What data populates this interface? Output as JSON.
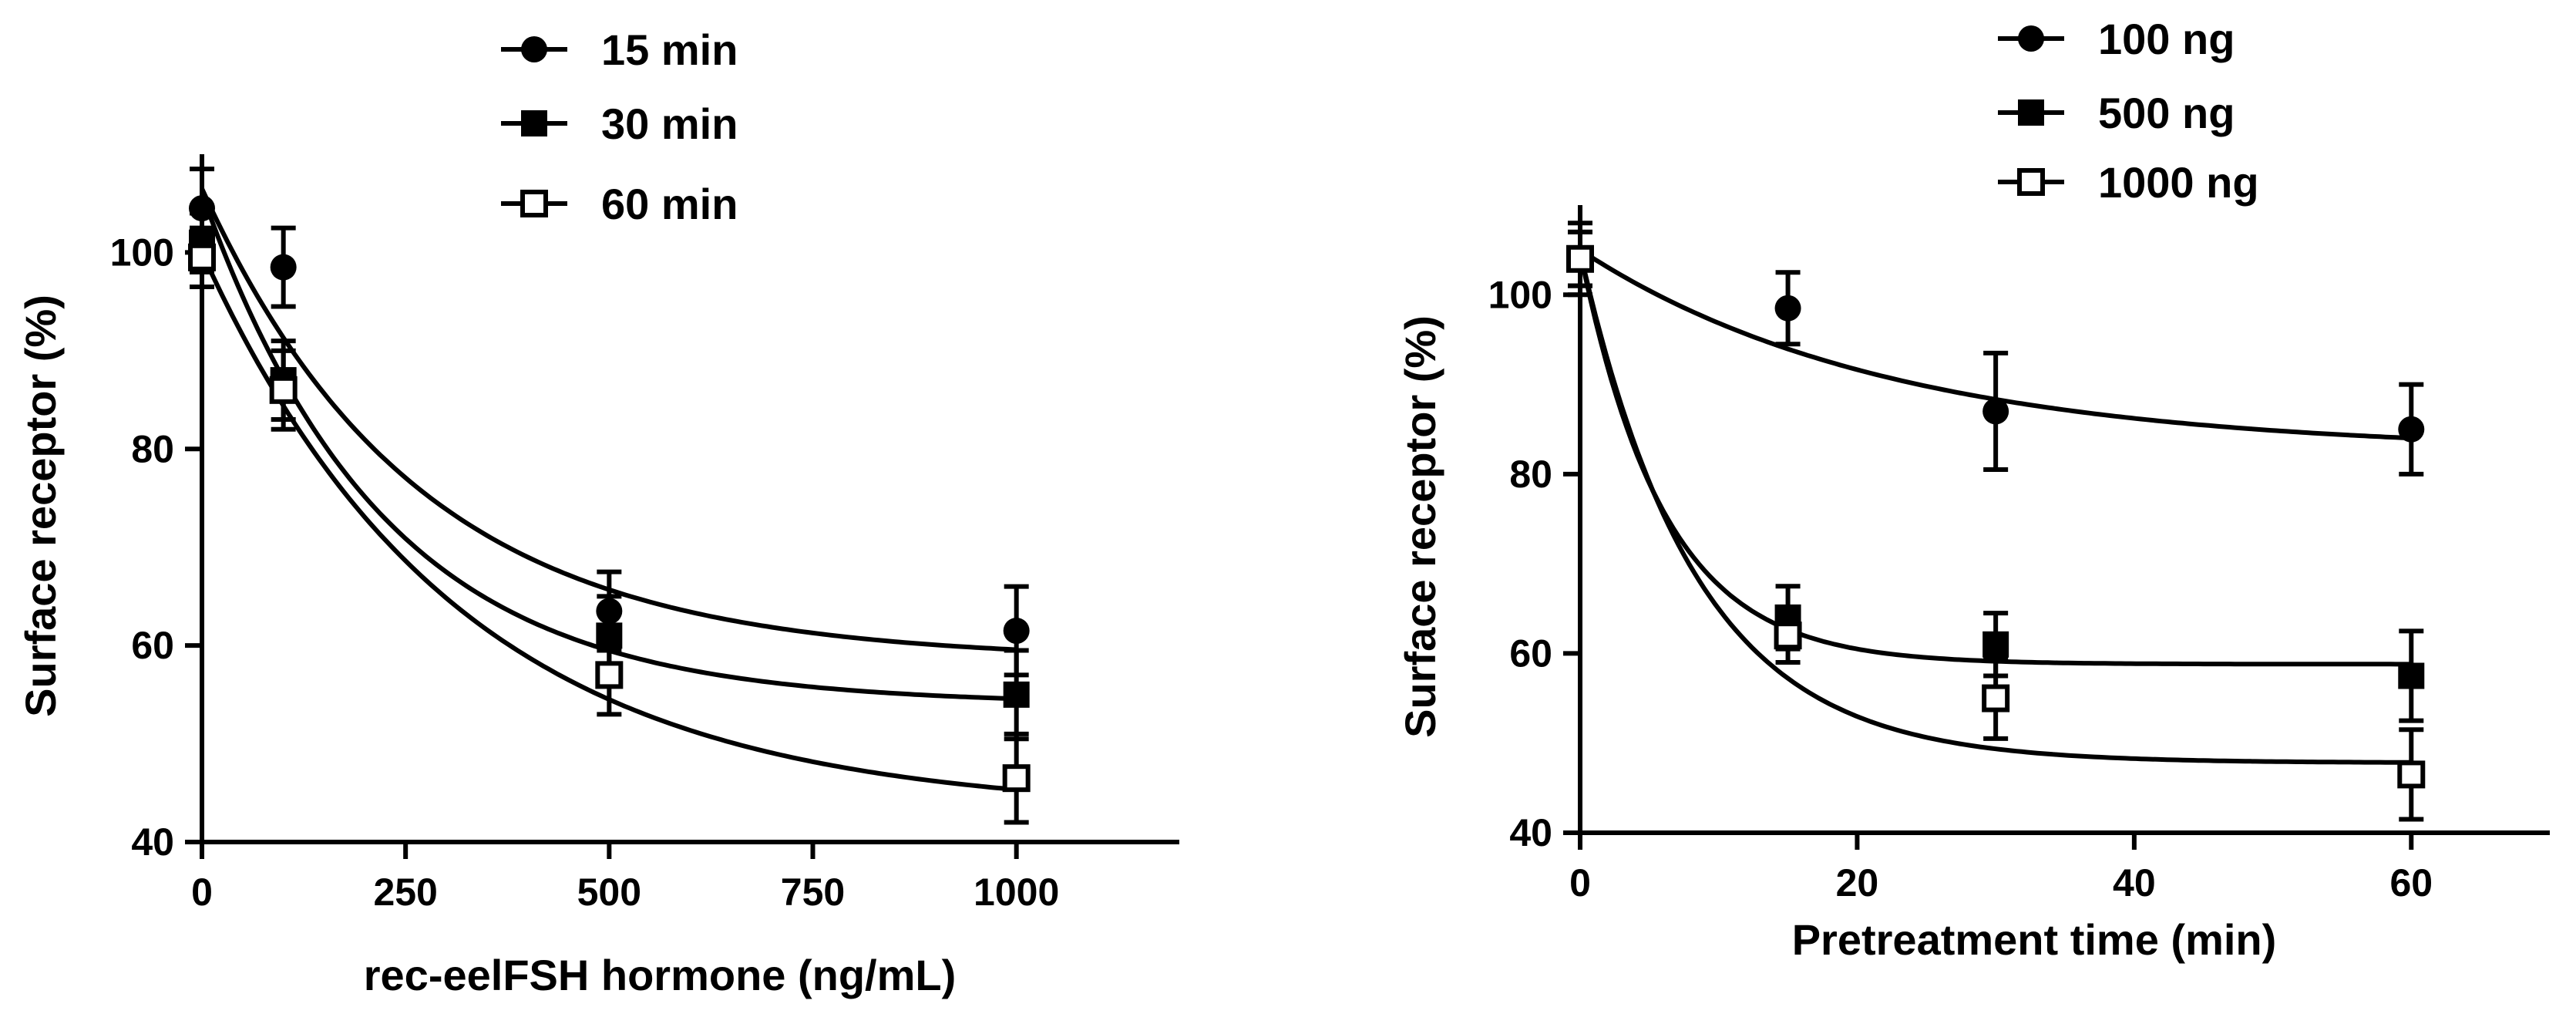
{
  "colors": {
    "ink": "#000000",
    "background": "#ffffff"
  },
  "chart_data": [
    {
      "type": "scatter",
      "title": "",
      "xlabel": "rec-eelFSH hormone (ng/mL)",
      "ylabel": "Surface receptor (%)",
      "xlim": [
        0,
        1200
      ],
      "ylim": [
        40,
        110
      ],
      "xticks": [
        0,
        250,
        500,
        750,
        1000
      ],
      "yticks": [
        40,
        60,
        80,
        100
      ],
      "legend_position": "top-center",
      "series": [
        {
          "name": "15 min",
          "marker": "filled-circle",
          "x": [
            0,
            100,
            500,
            1000
          ],
          "y": [
            104.5,
            98.5,
            63.5,
            61.5
          ],
          "err": [
            4,
            4,
            4,
            4.5
          ],
          "fit": {
            "plateau": 58.5,
            "span": 48,
            "k": 0.0038
          }
        },
        {
          "name": "30 min",
          "marker": "filled-square",
          "x": [
            0,
            100,
            500,
            1000
          ],
          "y": [
            101,
            87,
            61,
            55
          ],
          "err": [
            3,
            4,
            4,
            4.5
          ],
          "fit": {
            "plateau": 54,
            "span": 52,
            "k": 0.0045
          }
        },
        {
          "name": "60 min",
          "marker": "open-square",
          "x": [
            0,
            100,
            500,
            1000
          ],
          "y": [
            99.5,
            86,
            57,
            46.5
          ],
          "err": [
            3,
            4,
            4,
            4.5
          ],
          "fit": {
            "plateau": 43,
            "span": 57,
            "k": 0.0032
          }
        }
      ]
    },
    {
      "type": "scatter",
      "title": "",
      "xlabel": "Pretreatment time (min)",
      "ylabel": "Surface receptor (%)",
      "xlim": [
        0,
        70
      ],
      "ylim": [
        40,
        110
      ],
      "xticks": [
        0,
        20,
        40,
        60
      ],
      "yticks": [
        40,
        60,
        80,
        100
      ],
      "legend_position": "top-center",
      "series": [
        {
          "name": "100 ng",
          "marker": "filled-circle",
          "x": [
            0,
            15,
            30,
            60
          ],
          "y": [
            104,
            98.5,
            87,
            85
          ],
          "err": [
            4,
            4,
            6.5,
            5
          ],
          "fit": {
            "plateau": 82.5,
            "span": 22.5,
            "k": 0.045
          }
        },
        {
          "name": "500 ng",
          "marker": "filled-square",
          "x": [
            0,
            15,
            30,
            60
          ],
          "y": [
            104,
            64,
            61,
            57.5
          ],
          "err": [
            3,
            3.5,
            3.5,
            5
          ],
          "fit": {
            "plateau": 58.8,
            "span": 46,
            "k": 0.165
          }
        },
        {
          "name": "1000 ng",
          "marker": "open-square",
          "x": [
            0,
            15,
            30,
            60
          ],
          "y": [
            104,
            62,
            55,
            46.5
          ],
          "err": [
            3,
            3,
            4.5,
            5
          ],
          "fit": {
            "plateau": 47.8,
            "span": 57,
            "k": 0.12
          }
        }
      ]
    }
  ]
}
